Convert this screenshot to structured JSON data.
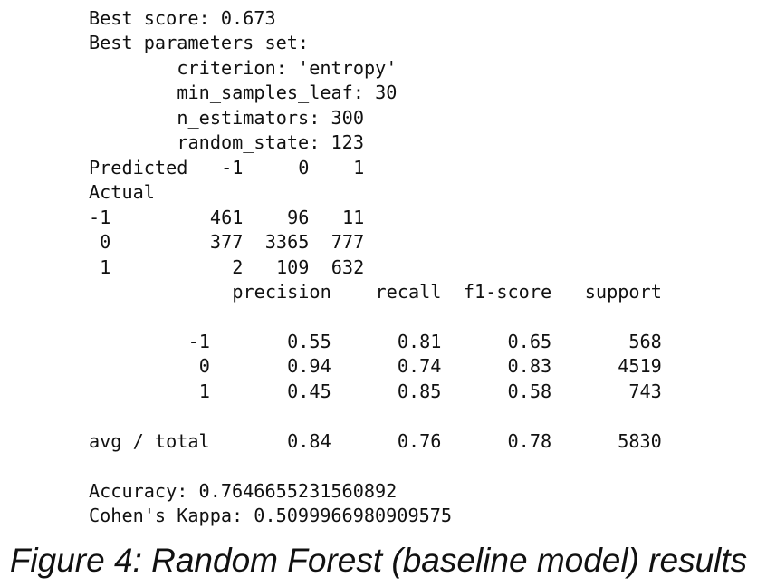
{
  "header": {
    "best_score": "Best score: 0.673",
    "params_title": "Best parameters set:"
  },
  "params": [
    "criterion: 'entropy'",
    "min_samples_leaf: 30",
    "n_estimators: 300",
    "random_state: 123"
  ],
  "confusion": {
    "row_label": "Predicted",
    "col_label": "Actual",
    "columns": [
      "-1",
      "0",
      "1"
    ],
    "rows": [
      {
        "label": "-1",
        "values": [
          "461",
          "96",
          "11"
        ]
      },
      {
        "label": "0",
        "values": [
          "377",
          "3365",
          "777"
        ]
      },
      {
        "label": "1",
        "values": [
          "2",
          "109",
          "632"
        ]
      }
    ]
  },
  "report": {
    "columns": [
      "precision",
      "recall",
      "f1-score",
      "support"
    ],
    "rows": [
      {
        "label": "-1",
        "values": [
          "0.55",
          "0.81",
          "0.65",
          "568"
        ]
      },
      {
        "label": "0",
        "values": [
          "0.94",
          "0.74",
          "0.83",
          "4519"
        ]
      },
      {
        "label": "1",
        "values": [
          "0.45",
          "0.85",
          "0.58",
          "743"
        ]
      }
    ],
    "total": {
      "label": "avg / total",
      "values": [
        "0.84",
        "0.76",
        "0.78",
        "5830"
      ]
    }
  },
  "accuracy": "Accuracy: 0.7646655231560892",
  "kappa": "Cohen's Kappa: 0.5099966980909575",
  "caption": "Figure 4: Random Forest (baseline model) results"
}
